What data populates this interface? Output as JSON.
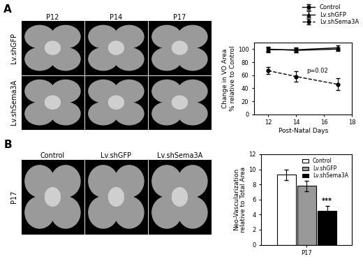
{
  "panel_letters": [
    "A",
    "B"
  ],
  "image_panels": [
    {
      "columns": [
        "P12",
        "P14",
        "P17"
      ],
      "rows": [
        "Lv.shGFP",
        "Lv.shSema3A"
      ]
    },
    {
      "columns": [
        "Control",
        "Lv.shGFP",
        "Lv.shSema3A"
      ],
      "rows": [
        "P17"
      ]
    }
  ],
  "chart_data": [
    {
      "type": "line",
      "x_label": "Post-Natal Days",
      "y_label": "Change in VO Area\n% relative to Control",
      "x": [
        12,
        14,
        17
      ],
      "xlim": [
        11,
        18
      ],
      "xticks": [
        12,
        14,
        16,
        18
      ],
      "ylim": [
        0,
        110
      ],
      "yticks": [
        0,
        20,
        40,
        60,
        80,
        100
      ],
      "legend": "upper right",
      "series": [
        {
          "name": "Control",
          "color": "#000000",
          "marker": "square",
          "line_style": "solid",
          "values": [
            100,
            98,
            100
          ],
          "errors": [
            4,
            3,
            3
          ]
        },
        {
          "name": "Lv.shGFP",
          "color": "#000000",
          "marker": "triangle",
          "line_style": "solid",
          "values": [
            99,
            99,
            102
          ],
          "errors": [
            4,
            4,
            4
          ]
        },
        {
          "name": "Lv.shSema3A",
          "color": "#000000",
          "marker": "circle",
          "line_style": "dashed",
          "values": [
            67,
            58,
            46
          ],
          "errors": [
            5,
            8,
            9
          ]
        }
      ],
      "annotations": [
        {
          "text": "p=0.02",
          "series": "Lv.shSema3A"
        }
      ]
    },
    {
      "type": "bar",
      "y_label": "Neo-Vascularization\nrelative to Total Area",
      "categories": [
        "P17"
      ],
      "ylim": [
        0,
        12
      ],
      "yticks": [
        0,
        2,
        4,
        6,
        8,
        10,
        12
      ],
      "legend": "upper right",
      "series": [
        {
          "name": "Control",
          "color": "#ffffff",
          "values": [
            9.3
          ],
          "errors": [
            0.7
          ]
        },
        {
          "name": "Lv.shGFP",
          "color": "#999999",
          "values": [
            7.8
          ],
          "errors": [
            0.7
          ]
        },
        {
          "name": "Lv.shSema3A",
          "color": "#000000",
          "values": [
            4.5
          ],
          "errors": [
            0.6
          ],
          "annotation": "***"
        }
      ]
    }
  ]
}
